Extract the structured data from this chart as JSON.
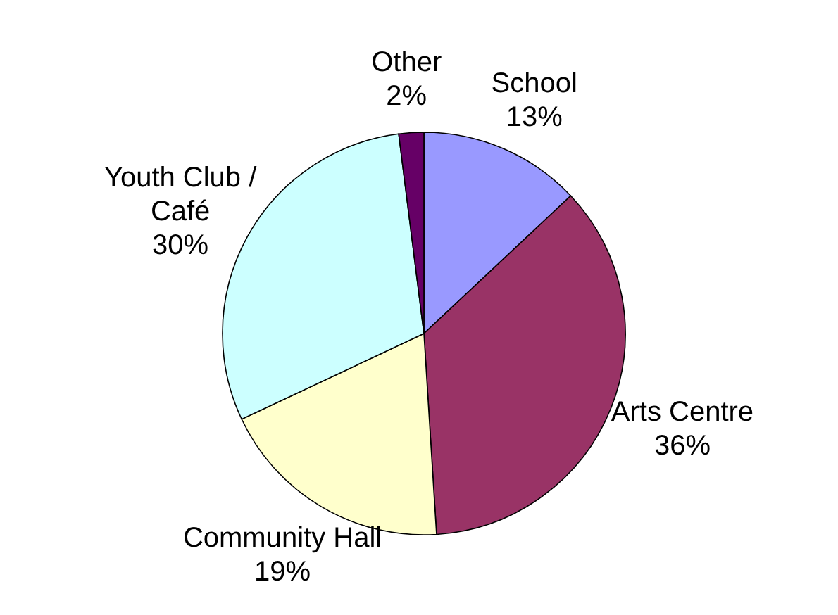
{
  "chart_data": {
    "type": "pie",
    "categories": [
      "School",
      "Arts Centre",
      "Community Hall",
      "Youth Club / Café",
      "Other"
    ],
    "values": [
      13,
      36,
      19,
      30,
      2
    ],
    "value_labels": [
      "13%",
      "36%",
      "19%",
      "30%",
      "2%"
    ],
    "colors": [
      "#9999ff",
      "#993366",
      "#ffffcc",
      "#ccffff",
      "#660066"
    ]
  }
}
